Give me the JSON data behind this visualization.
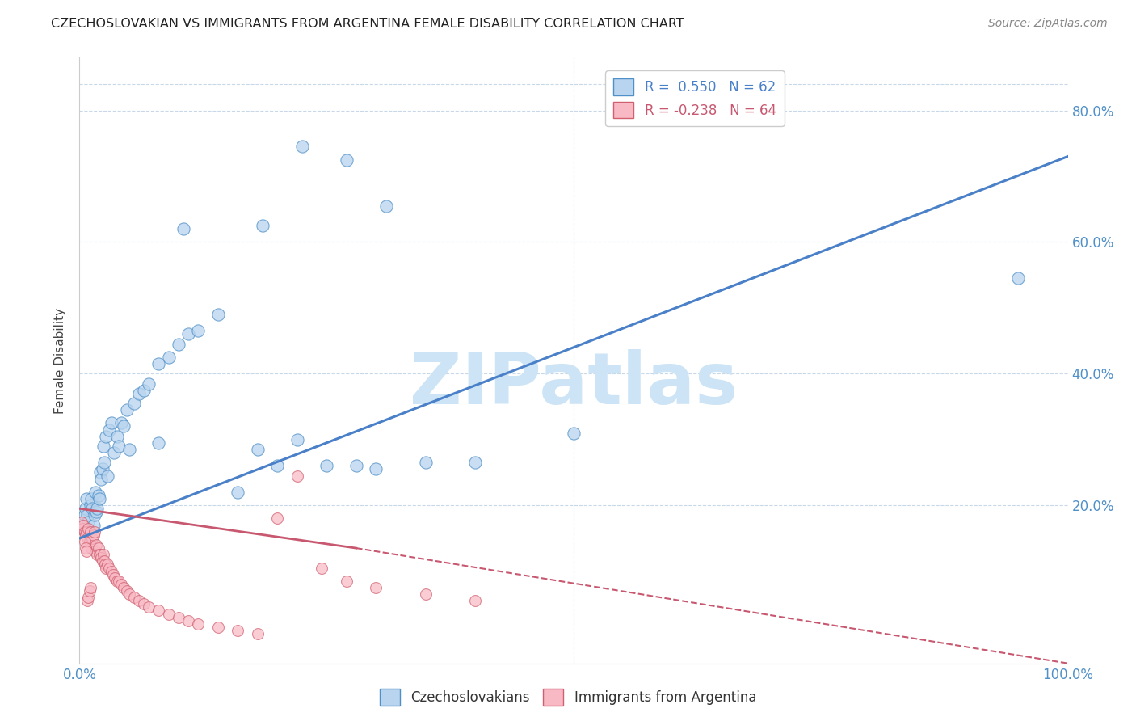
{
  "title": "CZECHOSLOVAKIAN VS IMMIGRANTS FROM ARGENTINA FEMALE DISABILITY CORRELATION CHART",
  "source": "Source: ZipAtlas.com",
  "ylabel": "Female Disability",
  "legend": {
    "blue_R": "R =  0.550",
    "blue_N": "N = 62",
    "pink_R": "R = -0.238",
    "pink_N": "N = 64"
  },
  "blue_fill": "#b8d4ee",
  "blue_edge": "#5090c8",
  "pink_fill": "#f8b8c4",
  "pink_edge": "#d06070",
  "blue_line_color": "#4a80c8",
  "pink_line_color": "#c85870",
  "watermark_color": "#cce4f5",
  "grid_color": "#c8d8e8",
  "blue_line": {
    "x0": 0.0,
    "y0": 0.15,
    "x1": 1.0,
    "y1": 0.73
  },
  "pink_line_solid": {
    "x0": 0.0,
    "y0": 0.195,
    "x1": 0.28,
    "y1": 0.135
  },
  "pink_line_dash": {
    "x0": 0.28,
    "y0": 0.135,
    "x1": 1.0,
    "y1": -0.04
  },
  "xlim": [
    0.0,
    1.0
  ],
  "ylim": [
    -0.04,
    0.88
  ],
  "xtick_positions": [
    0.0,
    0.5,
    1.0
  ],
  "xtick_labels": [
    "0.0%",
    "",
    "100.0%"
  ],
  "ytick_positions": [
    0.2,
    0.4,
    0.6,
    0.8
  ],
  "ytick_labels": [
    "20.0%",
    "40.0%",
    "60.0%",
    "80.0%"
  ],
  "tick_color": "#5090c8",
  "blue_scatter_x": [
    0.002,
    0.003,
    0.004,
    0.005,
    0.006,
    0.007,
    0.008,
    0.009,
    0.01,
    0.011,
    0.012,
    0.013,
    0.014,
    0.015,
    0.016,
    0.017,
    0.018,
    0.019,
    0.02,
    0.021,
    0.022,
    0.023,
    0.024,
    0.025,
    0.027,
    0.028,
    0.03,
    0.032,
    0.035,
    0.038,
    0.04,
    0.042,
    0.045,
    0.048,
    0.05,
    0.055,
    0.06,
    0.065,
    0.07,
    0.08,
    0.09,
    0.1,
    0.11,
    0.12,
    0.14,
    0.16,
    0.18,
    0.2,
    0.22,
    0.25,
    0.28,
    0.3,
    0.35,
    0.4,
    0.5,
    0.95,
    0.27,
    0.31,
    0.225,
    0.185,
    0.08,
    0.105
  ],
  "blue_scatter_y": [
    0.17,
    0.175,
    0.165,
    0.185,
    0.195,
    0.21,
    0.185,
    0.175,
    0.16,
    0.2,
    0.21,
    0.195,
    0.17,
    0.185,
    0.22,
    0.19,
    0.195,
    0.215,
    0.21,
    0.25,
    0.24,
    0.255,
    0.29,
    0.265,
    0.305,
    0.245,
    0.315,
    0.325,
    0.28,
    0.305,
    0.29,
    0.325,
    0.32,
    0.345,
    0.285,
    0.355,
    0.37,
    0.375,
    0.385,
    0.415,
    0.425,
    0.445,
    0.46,
    0.465,
    0.49,
    0.22,
    0.285,
    0.26,
    0.3,
    0.26,
    0.26,
    0.255,
    0.265,
    0.265,
    0.31,
    0.545,
    0.725,
    0.655,
    0.745,
    0.625,
    0.295,
    0.62
  ],
  "pink_scatter_x": [
    0.001,
    0.002,
    0.003,
    0.004,
    0.005,
    0.006,
    0.007,
    0.008,
    0.009,
    0.01,
    0.011,
    0.012,
    0.013,
    0.014,
    0.015,
    0.016,
    0.017,
    0.018,
    0.019,
    0.02,
    0.021,
    0.022,
    0.023,
    0.024,
    0.025,
    0.026,
    0.027,
    0.028,
    0.03,
    0.032,
    0.034,
    0.036,
    0.038,
    0.04,
    0.042,
    0.045,
    0.048,
    0.05,
    0.055,
    0.06,
    0.065,
    0.07,
    0.08,
    0.09,
    0.1,
    0.11,
    0.12,
    0.14,
    0.16,
    0.18,
    0.2,
    0.22,
    0.245,
    0.27,
    0.3,
    0.35,
    0.4,
    0.005,
    0.006,
    0.007,
    0.008,
    0.009,
    0.01,
    0.011
  ],
  "pink_scatter_y": [
    0.165,
    0.175,
    0.165,
    0.17,
    0.16,
    0.155,
    0.16,
    0.15,
    0.165,
    0.145,
    0.16,
    0.135,
    0.15,
    0.155,
    0.16,
    0.13,
    0.14,
    0.125,
    0.135,
    0.125,
    0.125,
    0.12,
    0.115,
    0.125,
    0.115,
    0.11,
    0.105,
    0.11,
    0.105,
    0.1,
    0.095,
    0.09,
    0.085,
    0.085,
    0.08,
    0.075,
    0.07,
    0.065,
    0.06,
    0.055,
    0.05,
    0.045,
    0.04,
    0.035,
    0.03,
    0.025,
    0.02,
    0.015,
    0.01,
    0.005,
    0.18,
    0.245,
    0.105,
    0.085,
    0.075,
    0.065,
    0.055,
    0.145,
    0.135,
    0.13,
    0.055,
    0.06,
    0.07,
    0.075
  ]
}
